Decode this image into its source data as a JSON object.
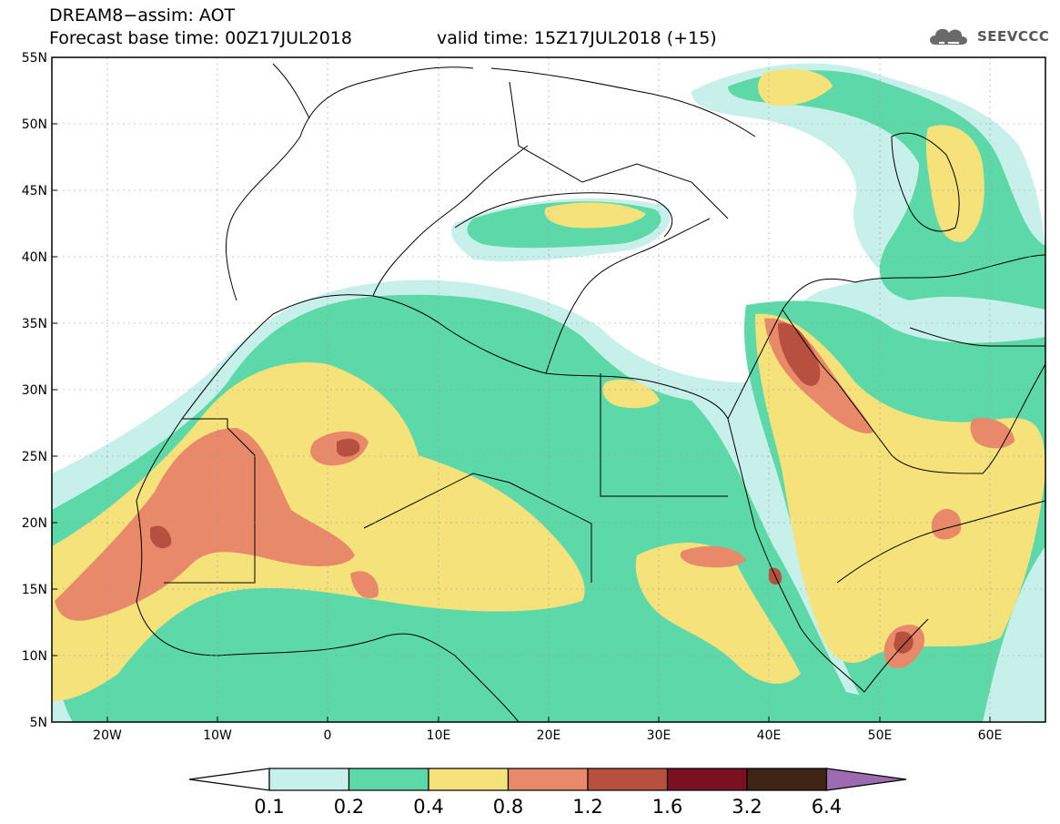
{
  "title": {
    "line1": "DREAM8−assim: AOT",
    "line2": "Forecast base time: 00Z17JUL2018",
    "valid": "valid time: 15Z17JUL2018 (+15)"
  },
  "logo": {
    "text": "SEEVCCC",
    "icon": "cloud-icon"
  },
  "map": {
    "lat_labels": [
      "55N",
      "50N",
      "45N",
      "40N",
      "35N",
      "30N",
      "25N",
      "20N",
      "15N",
      "10N",
      "5N"
    ],
    "lon_labels": [
      "20W",
      "10W",
      "0",
      "10E",
      "20E",
      "30E",
      "40E",
      "50E",
      "60E"
    ]
  },
  "legend": {
    "thresholds": [
      "0.1",
      "0.2",
      "0.4",
      "0.8",
      "1.2",
      "1.6",
      "3.2",
      "6.4"
    ],
    "colors": [
      "#ffffff",
      "#c8f0ea",
      "#5dd8a8",
      "#f5e27a",
      "#e8896a",
      "#b85040",
      "#7a1020",
      "#3e2414",
      "#9d6cb0"
    ]
  },
  "colors": {
    "c01": "#c8f0ea",
    "c02": "#5dd8a8",
    "c04": "#f5e27a",
    "c08": "#e8896a",
    "c12": "#b85040",
    "c16": "#7a1020"
  }
}
